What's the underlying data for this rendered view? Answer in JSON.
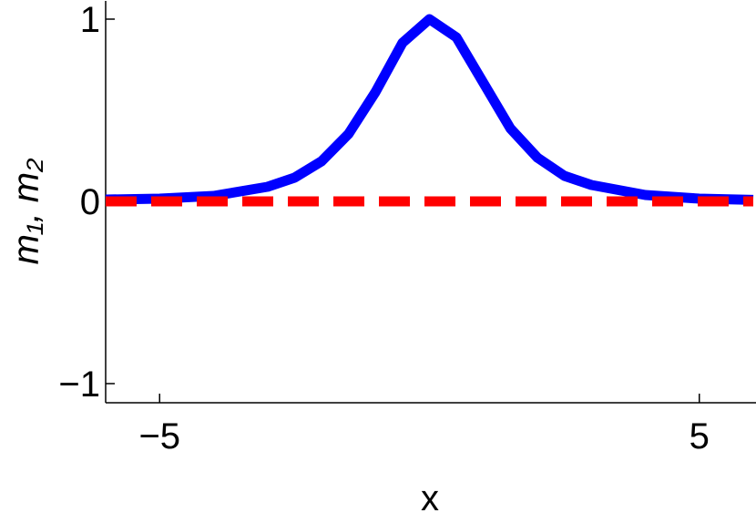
{
  "chart_data": {
    "type": "line",
    "xlabel": "x",
    "ylabel": "m₁, m₂",
    "x": [
      -6,
      -5,
      -4,
      -3,
      -2.5,
      -2,
      -1.5,
      -1,
      -0.5,
      0,
      0.5,
      1,
      1.5,
      2,
      2.5,
      3,
      4,
      5,
      6
    ],
    "series": [
      {
        "name": "m₁",
        "color": "#0000ff",
        "dash": false,
        "values": [
          0.01,
          0.015,
          0.03,
          0.08,
          0.13,
          0.22,
          0.37,
          0.6,
          0.87,
          1.0,
          0.9,
          0.65,
          0.4,
          0.24,
          0.14,
          0.09,
          0.035,
          0.015,
          0.008
        ]
      },
      {
        "name": "m₂",
        "color": "#ff0000",
        "dash": true,
        "values": [
          0,
          0,
          0,
          0,
          0,
          0,
          0,
          0,
          0,
          0,
          0,
          0,
          0,
          0,
          0,
          0,
          0,
          0,
          0
        ]
      }
    ],
    "xlim": [
      -6,
      6
    ],
    "ylim": [
      -1.1,
      1.1
    ],
    "xticks": [
      {
        "value": -5,
        "label": "−5"
      },
      5
    ],
    "yticks": [
      {
        "value": -1,
        "label": "−1"
      },
      0,
      1
    ]
  }
}
